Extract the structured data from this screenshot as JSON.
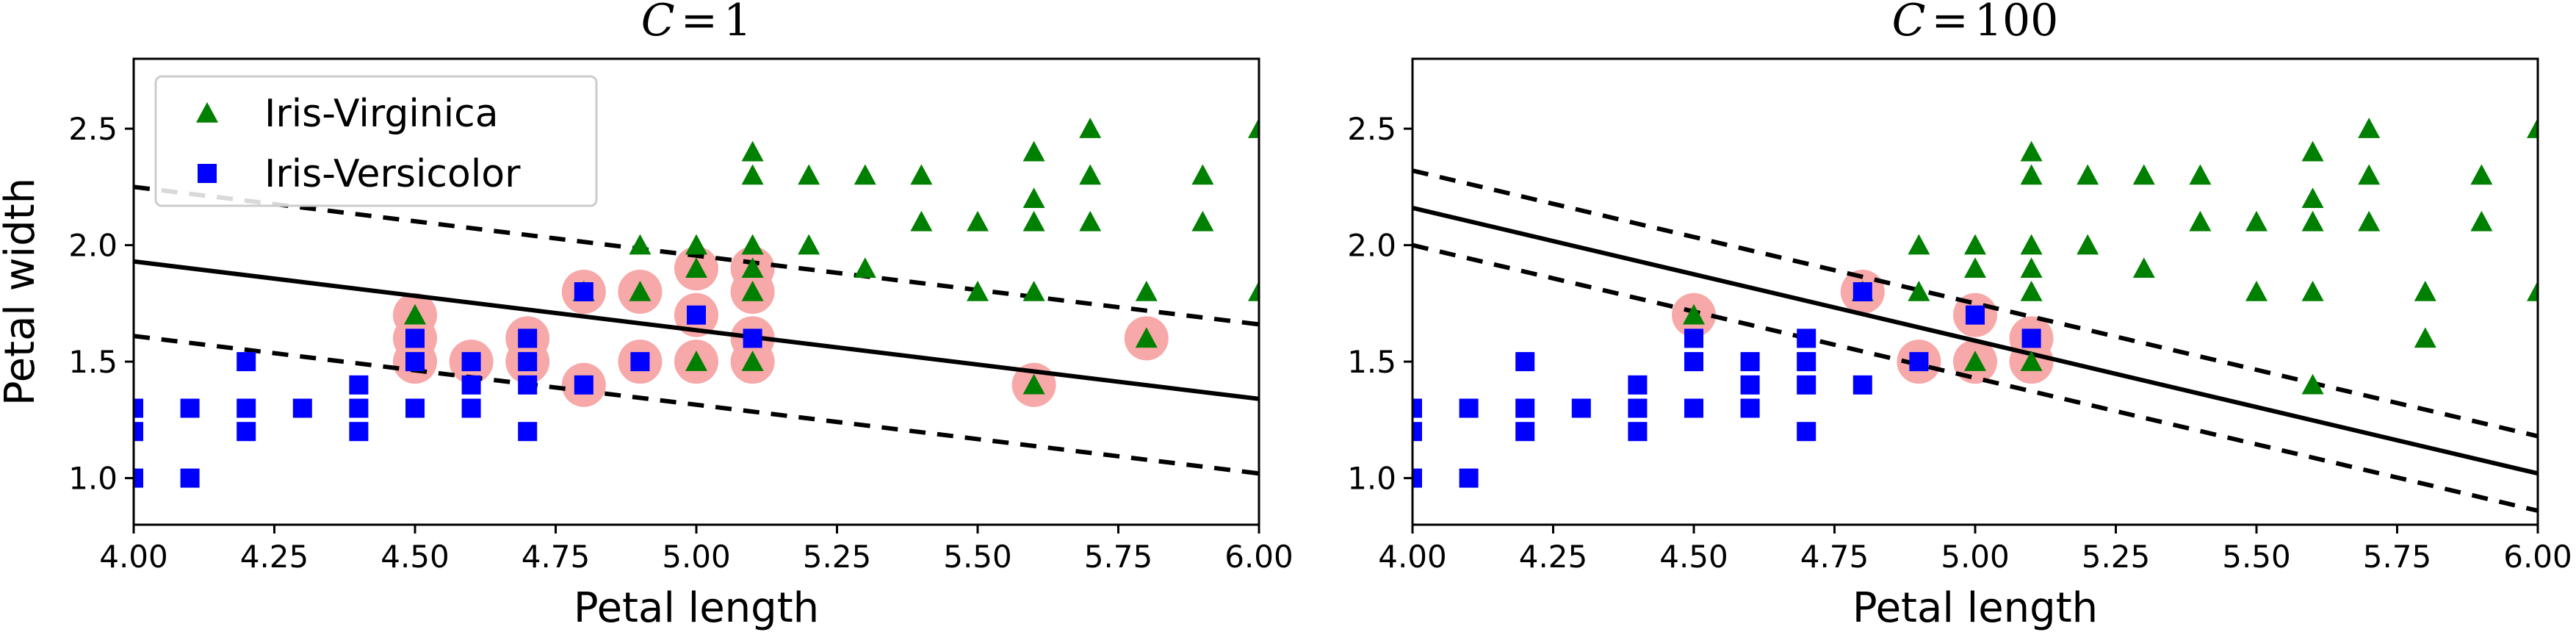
{
  "chart_data": [
    {
      "type": "scatter",
      "title_var": "C",
      "title_eq": "=",
      "title_num": "1",
      "xlabel": "Petal length",
      "ylabel": "Petal width",
      "xlim": [
        4.0,
        6.0
      ],
      "ylim": [
        0.8,
        2.8
      ],
      "xticks": [
        "4.00",
        "4.25",
        "4.50",
        "4.75",
        "5.00",
        "5.25",
        "5.50",
        "5.75",
        "6.00"
      ],
      "xtick_values": [
        4.0,
        4.25,
        4.5,
        4.75,
        5.0,
        5.25,
        5.5,
        5.75,
        6.0
      ],
      "yticks": [
        "1.0",
        "1.5",
        "2.0",
        "2.5"
      ],
      "ytick_values": [
        1.0,
        1.5,
        2.0,
        2.5
      ],
      "legend": {
        "position": "top-left",
        "entries": [
          "Iris-Virginica",
          "Iris-Versicolor"
        ]
      },
      "boundary": {
        "line": [
          [
            4.0,
            1.93
          ],
          [
            6.0,
            1.34
          ]
        ],
        "margin_upper": [
          [
            4.0,
            2.25
          ],
          [
            6.0,
            1.66
          ]
        ],
        "margin_lower": [
          [
            4.0,
            1.61
          ],
          [
            6.0,
            1.02
          ]
        ]
      },
      "support_vectors": [
        [
          4.5,
          1.7
        ],
        [
          4.5,
          1.6
        ],
        [
          4.5,
          1.5
        ],
        [
          4.6,
          1.5
        ],
        [
          4.7,
          1.6
        ],
        [
          4.7,
          1.5
        ],
        [
          4.8,
          1.8
        ],
        [
          4.8,
          1.4
        ],
        [
          4.9,
          1.8
        ],
        [
          4.9,
          1.5
        ],
        [
          5.0,
          1.9
        ],
        [
          5.0,
          1.7
        ],
        [
          5.0,
          1.5
        ],
        [
          5.1,
          1.9
        ],
        [
          5.1,
          1.8
        ],
        [
          5.1,
          1.6
        ],
        [
          5.1,
          1.5
        ],
        [
          5.6,
          1.4
        ],
        [
          5.8,
          1.6
        ]
      ],
      "series": [
        {
          "name": "Iris-Virginica",
          "color": "#008000",
          "marker": "triangle",
          "points": [
            [
              4.5,
              1.7
            ],
            [
              4.8,
              1.8
            ],
            [
              4.9,
              1.8
            ],
            [
              4.9,
              2.0
            ],
            [
              5.0,
              2.0
            ],
            [
              5.0,
              1.9
            ],
            [
              5.0,
              1.5
            ],
            [
              5.1,
              2.4
            ],
            [
              5.1,
              2.3
            ],
            [
              5.1,
              2.0
            ],
            [
              5.1,
              1.9
            ],
            [
              5.1,
              1.8
            ],
            [
              5.1,
              1.5
            ],
            [
              5.2,
              2.3
            ],
            [
              5.2,
              2.0
            ],
            [
              5.3,
              2.3
            ],
            [
              5.3,
              1.9
            ],
            [
              5.4,
              2.3
            ],
            [
              5.4,
              2.1
            ],
            [
              5.5,
              2.1
            ],
            [
              5.5,
              1.8
            ],
            [
              5.6,
              2.4
            ],
            [
              5.6,
              2.2
            ],
            [
              5.6,
              2.1
            ],
            [
              5.6,
              1.8
            ],
            [
              5.6,
              1.4
            ],
            [
              5.7,
              2.5
            ],
            [
              5.7,
              2.3
            ],
            [
              5.7,
              2.1
            ],
            [
              5.8,
              1.8
            ],
            [
              5.8,
              1.6
            ],
            [
              5.9,
              2.3
            ],
            [
              5.9,
              2.1
            ],
            [
              6.0,
              2.5
            ],
            [
              6.0,
              1.8
            ]
          ]
        },
        {
          "name": "Iris-Versicolor",
          "color": "#0000ff",
          "marker": "square",
          "points": [
            [
              4.0,
              1.3
            ],
            [
              4.0,
              1.2
            ],
            [
              4.0,
              1.0
            ],
            [
              4.1,
              1.3
            ],
            [
              4.1,
              1.0
            ],
            [
              4.2,
              1.5
            ],
            [
              4.2,
              1.3
            ],
            [
              4.2,
              1.2
            ],
            [
              4.3,
              1.3
            ],
            [
              4.4,
              1.4
            ],
            [
              4.4,
              1.3
            ],
            [
              4.4,
              1.2
            ],
            [
              4.5,
              1.6
            ],
            [
              4.5,
              1.5
            ],
            [
              4.5,
              1.3
            ],
            [
              4.6,
              1.5
            ],
            [
              4.6,
              1.4
            ],
            [
              4.6,
              1.3
            ],
            [
              4.7,
              1.6
            ],
            [
              4.7,
              1.5
            ],
            [
              4.7,
              1.4
            ],
            [
              4.7,
              1.2
            ],
            [
              4.8,
              1.8
            ],
            [
              4.8,
              1.4
            ],
            [
              4.9,
              1.5
            ],
            [
              5.0,
              1.7
            ],
            [
              5.1,
              1.6
            ]
          ]
        }
      ]
    },
    {
      "type": "scatter",
      "title_var": "C",
      "title_eq": "=",
      "title_num": "100",
      "xlabel": "Petal length",
      "ylabel": "",
      "xlim": [
        4.0,
        6.0
      ],
      "ylim": [
        0.8,
        2.8
      ],
      "xticks": [
        "4.00",
        "4.25",
        "4.50",
        "4.75",
        "5.00",
        "5.25",
        "5.50",
        "5.75",
        "6.00"
      ],
      "xtick_values": [
        4.0,
        4.25,
        4.5,
        4.75,
        5.0,
        5.25,
        5.5,
        5.75,
        6.0
      ],
      "yticks": [
        "1.0",
        "1.5",
        "2.0",
        "2.5"
      ],
      "ytick_values": [
        1.0,
        1.5,
        2.0,
        2.5
      ],
      "legend": null,
      "boundary": {
        "line": [
          [
            4.0,
            2.16
          ],
          [
            6.0,
            1.02
          ]
        ],
        "margin_upper": [
          [
            4.0,
            2.32
          ],
          [
            6.0,
            1.18
          ]
        ],
        "margin_lower": [
          [
            4.0,
            2.0
          ],
          [
            6.0,
            0.86
          ]
        ]
      },
      "support_vectors": [
        [
          4.5,
          1.7
        ],
        [
          4.8,
          1.8
        ],
        [
          4.9,
          1.5
        ],
        [
          5.0,
          1.7
        ],
        [
          5.0,
          1.5
        ],
        [
          5.1,
          1.6
        ],
        [
          5.1,
          1.5
        ]
      ],
      "series": [
        {
          "name": "Iris-Virginica",
          "color": "#008000",
          "marker": "triangle",
          "points": [
            [
              4.5,
              1.7
            ],
            [
              4.8,
              1.8
            ],
            [
              4.9,
              1.8
            ],
            [
              4.9,
              2.0
            ],
            [
              5.0,
              2.0
            ],
            [
              5.0,
              1.9
            ],
            [
              5.0,
              1.5
            ],
            [
              5.1,
              2.4
            ],
            [
              5.1,
              2.3
            ],
            [
              5.1,
              2.0
            ],
            [
              5.1,
              1.9
            ],
            [
              5.1,
              1.8
            ],
            [
              5.1,
              1.5
            ],
            [
              5.2,
              2.3
            ],
            [
              5.2,
              2.0
            ],
            [
              5.3,
              2.3
            ],
            [
              5.3,
              1.9
            ],
            [
              5.4,
              2.3
            ],
            [
              5.4,
              2.1
            ],
            [
              5.5,
              2.1
            ],
            [
              5.5,
              1.8
            ],
            [
              5.6,
              2.4
            ],
            [
              5.6,
              2.2
            ],
            [
              5.6,
              2.1
            ],
            [
              5.6,
              1.8
            ],
            [
              5.6,
              1.4
            ],
            [
              5.7,
              2.5
            ],
            [
              5.7,
              2.3
            ],
            [
              5.7,
              2.1
            ],
            [
              5.8,
              1.8
            ],
            [
              5.8,
              1.6
            ],
            [
              5.9,
              2.3
            ],
            [
              5.9,
              2.1
            ],
            [
              6.0,
              2.5
            ],
            [
              6.0,
              1.8
            ]
          ]
        },
        {
          "name": "Iris-Versicolor",
          "color": "#0000ff",
          "marker": "square",
          "points": [
            [
              4.0,
              1.3
            ],
            [
              4.0,
              1.2
            ],
            [
              4.0,
              1.0
            ],
            [
              4.1,
              1.3
            ],
            [
              4.1,
              1.0
            ],
            [
              4.2,
              1.5
            ],
            [
              4.2,
              1.3
            ],
            [
              4.2,
              1.2
            ],
            [
              4.3,
              1.3
            ],
            [
              4.4,
              1.4
            ],
            [
              4.4,
              1.3
            ],
            [
              4.4,
              1.2
            ],
            [
              4.5,
              1.6
            ],
            [
              4.5,
              1.5
            ],
            [
              4.5,
              1.3
            ],
            [
              4.6,
              1.5
            ],
            [
              4.6,
              1.4
            ],
            [
              4.6,
              1.3
            ],
            [
              4.7,
              1.6
            ],
            [
              4.7,
              1.5
            ],
            [
              4.7,
              1.4
            ],
            [
              4.7,
              1.2
            ],
            [
              4.8,
              1.8
            ],
            [
              4.8,
              1.4
            ],
            [
              4.9,
              1.5
            ],
            [
              5.0,
              1.7
            ],
            [
              5.1,
              1.6
            ]
          ]
        }
      ]
    }
  ]
}
